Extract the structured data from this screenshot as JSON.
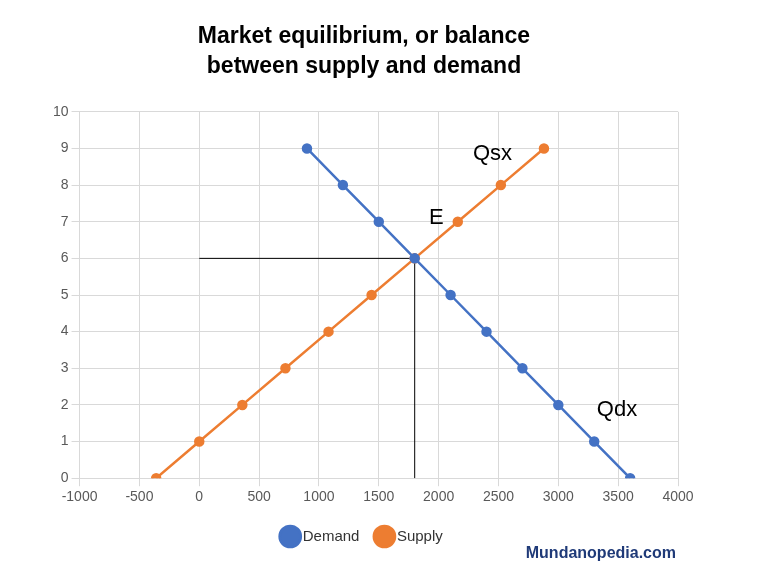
{
  "chart_data": {
    "type": "line",
    "title": "Market equilibrium, or balance\nbetween supply and demand",
    "series": [
      {
        "name": "Demand",
        "color": "#4472c4",
        "marker": "circle",
        "x": [
          900,
          1200,
          1500,
          1800,
          2100,
          2400,
          2700,
          3000,
          3300,
          3600
        ],
        "values": [
          9,
          8,
          7,
          6,
          5,
          4,
          3,
          2,
          1,
          0
        ]
      },
      {
        "name": "Supply",
        "color": "#ed7d31",
        "marker": "circle",
        "x": [
          -360,
          0,
          360,
          720,
          1080,
          1440,
          1800,
          2160,
          2520,
          2880
        ],
        "values": [
          0,
          1,
          2,
          3,
          4,
          5,
          6,
          7,
          8,
          9
        ]
      }
    ],
    "guide_lines": [
      {
        "color": "#000000",
        "x": [
          0,
          1800
        ],
        "values": [
          6,
          6
        ]
      },
      {
        "color": "#000000",
        "x": [
          1800,
          1800
        ],
        "values": [
          0,
          6
        ]
      }
    ],
    "annotations": [
      {
        "text": "Qsx",
        "x": 2450,
        "y": 8.85
      },
      {
        "text": "E",
        "x": 1980,
        "y": 7.1
      },
      {
        "text": "Qdx",
        "x": 3490,
        "y": 1.85
      }
    ],
    "source": "Mundanopedia.com",
    "xlim": [
      -1000,
      4000
    ],
    "xticks": [
      -1000,
      -500,
      0,
      500,
      1000,
      1500,
      2000,
      2500,
      3000,
      3500,
      4000
    ],
    "ylim": [
      0,
      10
    ],
    "yticks": [
      0,
      1,
      2,
      3,
      4,
      5,
      6,
      7,
      8,
      9,
      10
    ],
    "grid": true,
    "legend": "bottom"
  }
}
